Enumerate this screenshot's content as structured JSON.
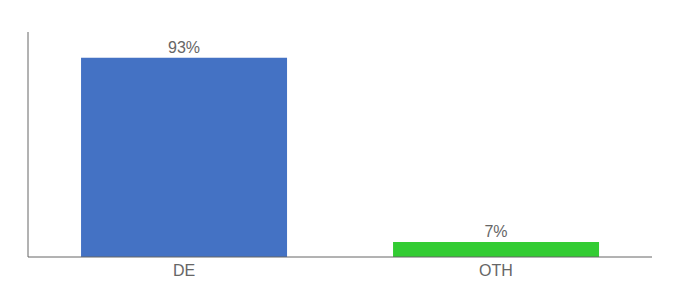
{
  "chart_data": {
    "type": "bar",
    "categories": [
      "DE",
      "OTH"
    ],
    "values": [
      93,
      7
    ],
    "value_labels": [
      "93%",
      "7%"
    ],
    "colors": [
      "#4472c4",
      "#33cc33"
    ],
    "ylim": [
      0,
      105
    ],
    "data_labels": true,
    "tick_labels": "x",
    "grid": false
  }
}
